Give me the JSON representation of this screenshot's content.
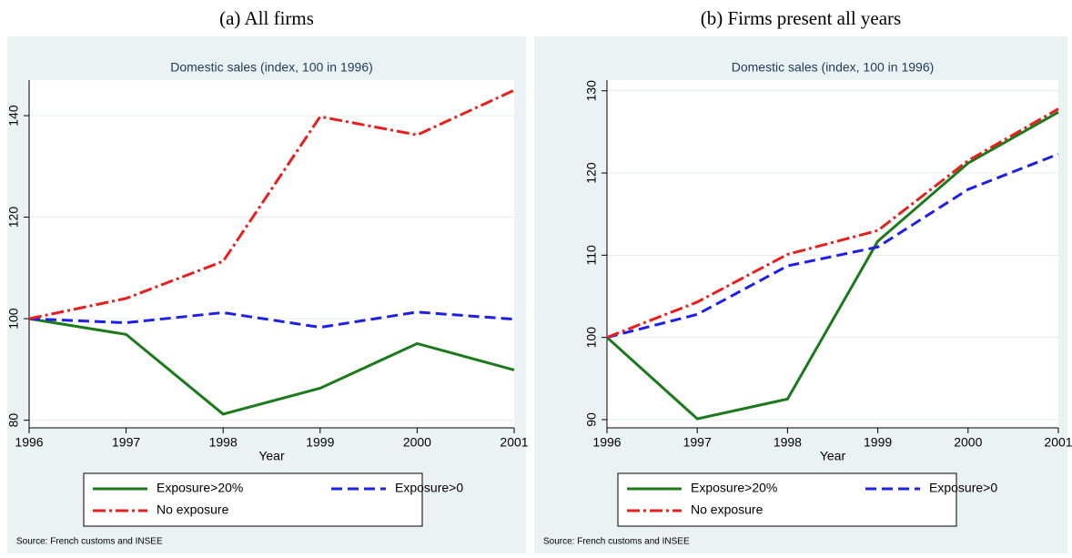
{
  "chart_data": [
    {
      "type": "line",
      "panel_label": "(a) All firms",
      "title": "Domestic sales (index, 100 in 1996)",
      "x_label": "Year",
      "x": [
        1996,
        1997,
        1998,
        1999,
        2000,
        2001
      ],
      "xlim": [
        1996,
        2001
      ],
      "xticks": [
        1996,
        1997,
        1998,
        1999,
        2000,
        2001
      ],
      "ylim": [
        78.5,
        147
      ],
      "yticks": [
        80,
        100,
        120,
        140
      ],
      "grid": true,
      "series": [
        {
          "name": "Exposure>20%",
          "color": "#1c7a1c",
          "style": "solid",
          "values": [
            100,
            96.9,
            81.2,
            86.3,
            95.1,
            89.9
          ]
        },
        {
          "name": "Exposure>0",
          "color": "#1f1fe6",
          "style": "dash",
          "values": [
            100,
            99.2,
            101.2,
            98.3,
            101.3,
            99.9
          ]
        },
        {
          "name": "No exposure",
          "color": "#e61f1f",
          "style": "dashdot",
          "values": [
            100,
            104,
            111.3,
            139.8,
            136.2,
            145
          ]
        }
      ],
      "note": "Source: French customs and INSEE"
    },
    {
      "type": "line",
      "panel_label": "(b) Firms present all years",
      "title": "Domestic sales (index, 100 in 1996)",
      "x_label": "Year",
      "x": [
        1996,
        1997,
        1998,
        1999,
        2000,
        2001
      ],
      "xlim": [
        1996,
        2001
      ],
      "xticks": [
        1996,
        1997,
        1998,
        1999,
        2000,
        2001
      ],
      "ylim": [
        89,
        131.3
      ],
      "yticks": [
        90,
        100,
        110,
        120,
        130
      ],
      "grid": true,
      "series": [
        {
          "name": "Exposure>20%",
          "color": "#1c7a1c",
          "style": "solid",
          "values": [
            100,
            90.1,
            92.5,
            111.7,
            121.2,
            127.4
          ]
        },
        {
          "name": "Exposure>0",
          "color": "#1f1fe6",
          "style": "dash",
          "values": [
            100,
            102.8,
            108.7,
            111,
            118,
            122.3
          ]
        },
        {
          "name": "No exposure",
          "color": "#e61f1f",
          "style": "dashdot",
          "values": [
            100,
            104.3,
            110.1,
            113,
            121.5,
            127.8
          ]
        }
      ],
      "note": "Source: French customs and INSEE"
    }
  ]
}
